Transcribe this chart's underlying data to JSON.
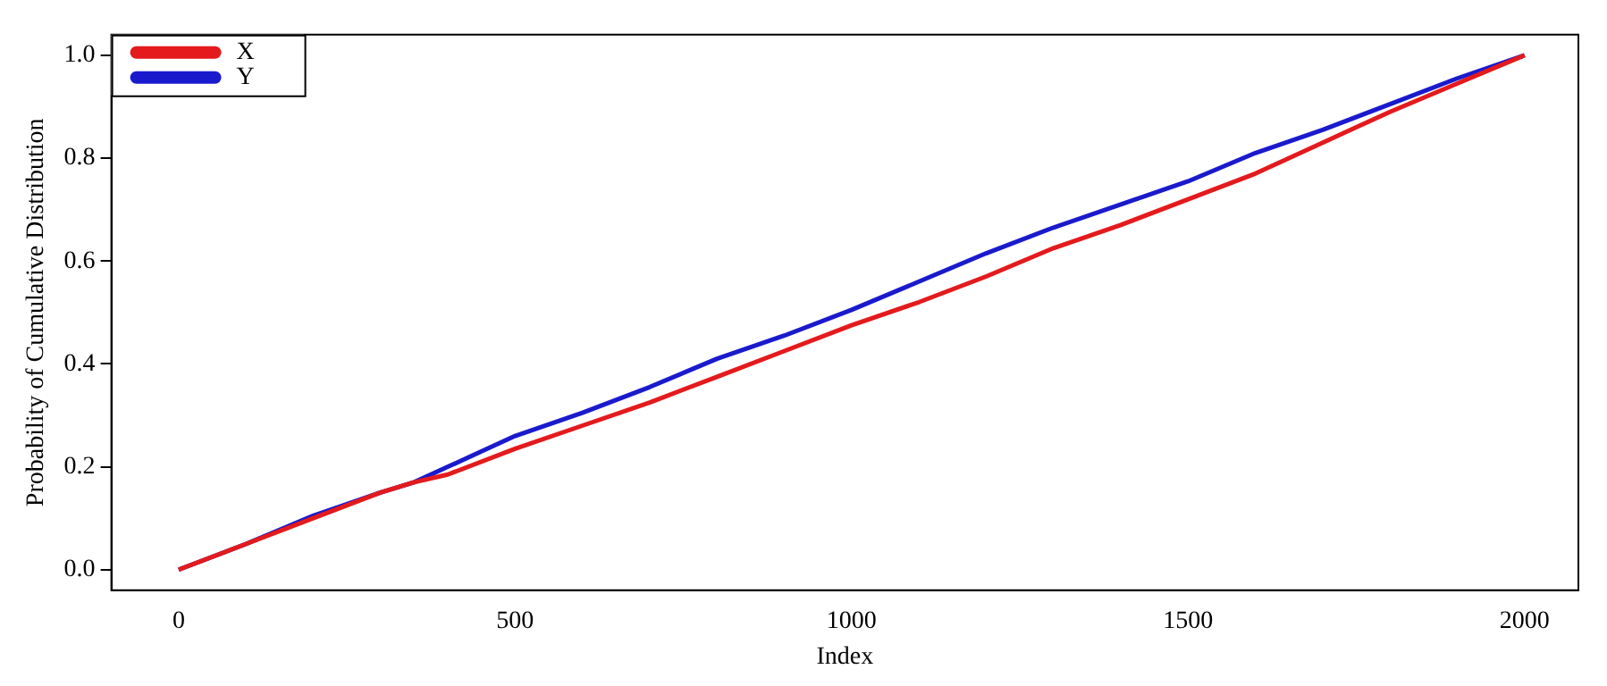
{
  "chart_data": {
    "type": "line",
    "xlabel": "Index",
    "ylabel": "Probability of Cumulative Distribution",
    "xlim": [
      -100,
      2080
    ],
    "ylim": [
      -0.04,
      1.04
    ],
    "xticks": [
      0,
      500,
      1000,
      1500,
      2000
    ],
    "yticks": [
      {
        "value": 0,
        "label": "0.0"
      },
      {
        "value": 0.2,
        "label": "0.2"
      },
      {
        "value": 0.4,
        "label": "0.4"
      },
      {
        "value": 0.6,
        "label": "0.6"
      },
      {
        "value": 0.8,
        "label": "0.8"
      },
      {
        "value": 1,
        "label": "1.0"
      }
    ],
    "grid": false,
    "legend": "top left",
    "marker": "none",
    "line_style": "solid",
    "series": [
      {
        "name": "X",
        "color": "#e41a1c",
        "x": [
          0,
          100,
          200,
          300,
          350,
          400,
          500,
          600,
          700,
          800,
          900,
          1000,
          1100,
          1200,
          1300,
          1400,
          1500,
          1600,
          1700,
          1800,
          1900,
          2000
        ],
        "values": [
          0,
          0.05,
          0.1,
          0.15,
          0.17,
          0.185,
          0.235,
          0.28,
          0.325,
          0.375,
          0.425,
          0.475,
          0.52,
          0.57,
          0.625,
          0.67,
          0.72,
          0.77,
          0.83,
          0.89,
          0.945,
          1.0
        ]
      },
      {
        "name": "Y",
        "color": "#1a1acd",
        "x": [
          0,
          100,
          200,
          300,
          350,
          400,
          500,
          600,
          700,
          800,
          900,
          1000,
          1100,
          1200,
          1300,
          1400,
          1500,
          1600,
          1700,
          1800,
          1900,
          2000
        ],
        "values": [
          0,
          0.05,
          0.105,
          0.15,
          0.17,
          0.2,
          0.26,
          0.305,
          0.355,
          0.41,
          0.455,
          0.505,
          0.56,
          0.615,
          0.665,
          0.71,
          0.755,
          0.81,
          0.855,
          0.905,
          0.955,
          1.0
        ]
      }
    ]
  }
}
